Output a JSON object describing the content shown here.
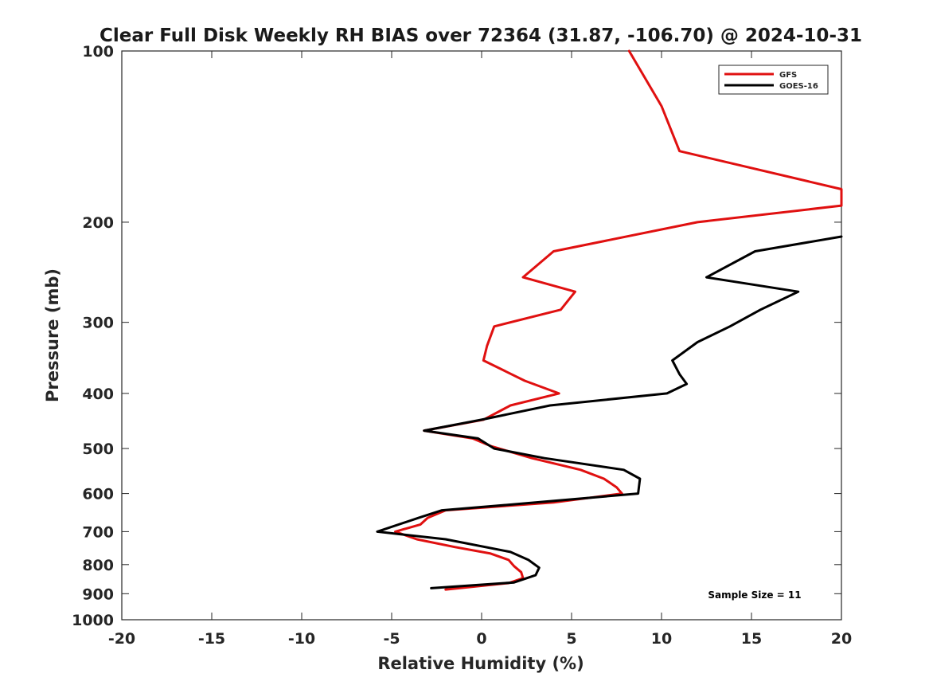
{
  "chart_data": {
    "type": "line",
    "title": "Clear Full Disk Weekly RH BIAS over 72364 (31.87, -106.70) @ 2024-10-31",
    "xlabel": "Relative Humidity (%)",
    "ylabel": "Pressure (mb)",
    "xlim": [
      -20,
      20
    ],
    "ylim": [
      1000,
      100
    ],
    "y_scale": "log",
    "y_reversed": true,
    "x_ticks": [
      -20,
      -15,
      -10,
      -5,
      0,
      5,
      10,
      15,
      20
    ],
    "x_tick_labels": [
      "-20",
      "-15",
      "-10",
      "-5",
      "0",
      "5",
      "10",
      "15",
      "20"
    ],
    "y_ticks": [
      100,
      200,
      300,
      400,
      500,
      600,
      700,
      800,
      900,
      1000
    ],
    "y_tick_labels": [
      "100",
      "200",
      "300",
      "400",
      "500",
      "600",
      "700",
      "800",
      "900",
      "1000"
    ],
    "grid": false,
    "legend_position": "top-right",
    "annotation": "Sample Size = 11",
    "series": [
      {
        "name": "GFS",
        "color": "#e01010",
        "points": [
          [
            8.2,
            100
          ],
          [
            10.0,
            125
          ],
          [
            11.0,
            150
          ],
          [
            20.0,
            175
          ],
          [
            20.0,
            187
          ],
          [
            12.0,
            200
          ],
          [
            4.0,
            225
          ],
          [
            2.3,
            250
          ],
          [
            5.2,
            265
          ],
          [
            4.4,
            285
          ],
          [
            0.7,
            305
          ],
          [
            0.3,
            330
          ],
          [
            0.1,
            350
          ],
          [
            2.4,
            380
          ],
          [
            4.3,
            400
          ],
          [
            1.6,
            420
          ],
          [
            0.1,
            445
          ],
          [
            -3.2,
            465
          ],
          [
            -0.5,
            480
          ],
          [
            0.5,
            495
          ],
          [
            2.8,
            520
          ],
          [
            5.5,
            545
          ],
          [
            6.8,
            565
          ],
          [
            7.5,
            585
          ],
          [
            7.8,
            600
          ],
          [
            4.0,
            622
          ],
          [
            -2.0,
            642
          ],
          [
            -3.0,
            662
          ],
          [
            -3.4,
            680
          ],
          [
            -4.8,
            700
          ],
          [
            -3.6,
            722
          ],
          [
            -1.5,
            745
          ],
          [
            0.5,
            765
          ],
          [
            1.5,
            785
          ],
          [
            1.8,
            805
          ],
          [
            2.2,
            825
          ],
          [
            2.3,
            845
          ],
          [
            1.5,
            862
          ],
          [
            -2.0,
            885
          ]
        ]
      },
      {
        "name": "GOES-16",
        "color": "#000000",
        "points": [
          [
            20.0,
            212
          ],
          [
            15.2,
            225
          ],
          [
            12.5,
            250
          ],
          [
            17.6,
            265
          ],
          [
            15.5,
            285
          ],
          [
            13.8,
            305
          ],
          [
            12.0,
            325
          ],
          [
            10.6,
            350
          ],
          [
            11.0,
            370
          ],
          [
            11.4,
            385
          ],
          [
            10.3,
            400
          ],
          [
            3.8,
            420
          ],
          [
            0.0,
            445
          ],
          [
            -3.2,
            465
          ],
          [
            -0.2,
            480
          ],
          [
            0.7,
            500
          ],
          [
            3.5,
            520
          ],
          [
            7.9,
            545
          ],
          [
            8.8,
            565
          ],
          [
            8.7,
            600
          ],
          [
            3.0,
            622
          ],
          [
            -2.2,
            642
          ],
          [
            -3.5,
            662
          ],
          [
            -5.8,
            700
          ],
          [
            -2.0,
            722
          ],
          [
            1.6,
            760
          ],
          [
            2.6,
            785
          ],
          [
            3.2,
            810
          ],
          [
            3.0,
            835
          ],
          [
            1.8,
            860
          ],
          [
            -2.8,
            880
          ]
        ]
      }
    ]
  }
}
